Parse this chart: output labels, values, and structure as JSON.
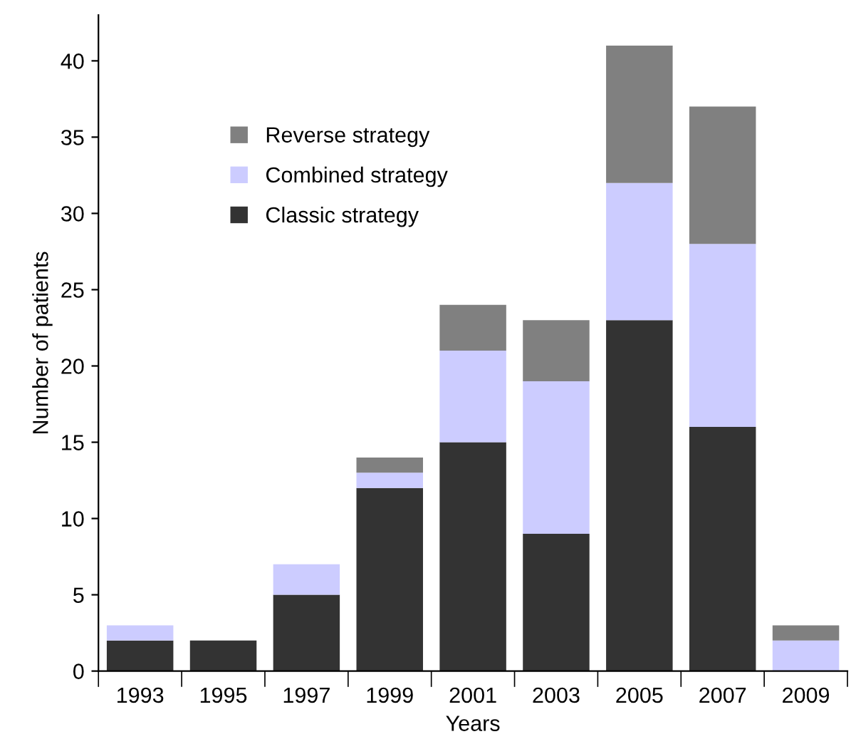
{
  "chart_data": {
    "type": "bar",
    "stacked": true,
    "xlabel": "Years",
    "ylabel": "Number of patients",
    "categories": [
      "1993",
      "1995",
      "1997",
      "1999",
      "2001",
      "2003",
      "2005",
      "2007",
      "2009"
    ],
    "series": [
      {
        "name": "Classic strategy",
        "color": "#333333",
        "values": [
          2,
          2,
          5,
          12,
          15,
          9,
          23,
          16,
          0
        ]
      },
      {
        "name": "Combined strategy",
        "color": "#ccccff",
        "values": [
          1,
          0,
          2,
          1,
          6,
          10,
          9,
          12,
          2
        ]
      },
      {
        "name": "Reverse strategy",
        "color": "#808080",
        "values": [
          0,
          0,
          0,
          1,
          3,
          4,
          9,
          9,
          1
        ]
      }
    ],
    "ylim": [
      0,
      43
    ],
    "yticks": [
      0,
      5,
      10,
      15,
      20,
      25,
      30,
      35,
      40
    ],
    "grid": false,
    "legend": "top left"
  }
}
